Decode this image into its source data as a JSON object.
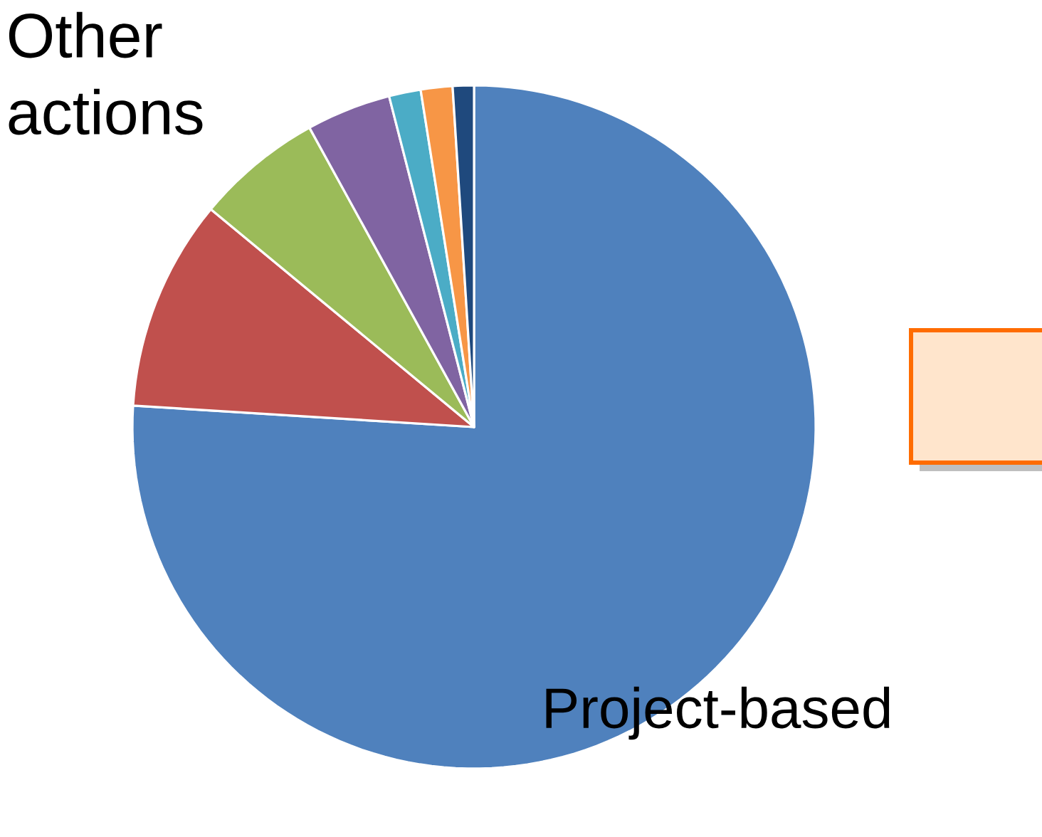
{
  "chart_data": {
    "type": "pie",
    "categories": [
      "Project-based",
      null,
      null,
      null,
      null,
      null,
      null
    ],
    "values": [
      76,
      10,
      6,
      4,
      1.5,
      1.5,
      1
    ],
    "colors": [
      "#4f81bd",
      "#c0504d",
      "#9bbb59",
      "#8064a2",
      "#4bacc6",
      "#f79646",
      "#1f497d"
    ],
    "annotations": [
      "Other actions"
    ]
  }
}
